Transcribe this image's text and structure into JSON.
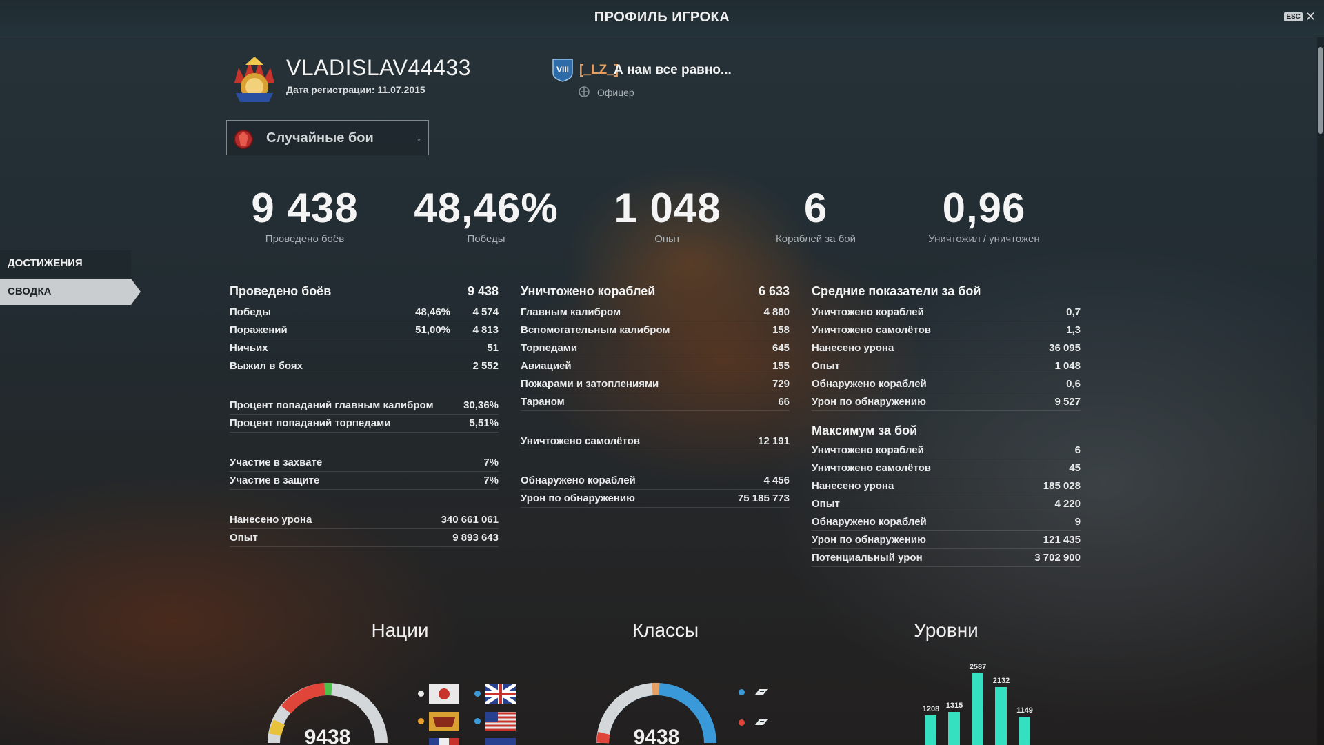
{
  "window": {
    "title": "ПРОФИЛЬ ИГРОКА",
    "esc_label": "ESC"
  },
  "player": {
    "name": "VLADISLAV44433",
    "registration": "Дата регистрации: 11.07.2015",
    "clan_tag": "[_LZ_]",
    "clan_name": "А нам все равно...",
    "clan_tier": "VIII",
    "clan_rank": "Офицер"
  },
  "mode_selector": {
    "selected": "Случайные бои"
  },
  "headline": [
    {
      "value": "9 438",
      "label": "Проведено боёв"
    },
    {
      "value": "48,46%",
      "label": "Победы"
    },
    {
      "value": "1 048",
      "label": "Опыт"
    },
    {
      "value": "6",
      "label": "Кораблей за бой"
    },
    {
      "value": "0,96",
      "label": "Уничтожил / уничтожен"
    }
  ],
  "nav": {
    "achievements": "ДОСТИЖЕНИЯ",
    "summary": "СВОДКА"
  },
  "battles": {
    "header": "Проведено боёв",
    "total": "9 438",
    "rows": [
      {
        "label": "Победы",
        "pct": "48,46%",
        "value": "4 574"
      },
      {
        "label": "Поражений",
        "pct": "51,00%",
        "value": "4 813"
      },
      {
        "label": "Ничьих",
        "pct": "",
        "value": "51"
      },
      {
        "label": "Выжил в боях",
        "pct": "",
        "value": "2 552"
      }
    ],
    "accuracy": [
      {
        "label": "Процент попаданий главным калибром",
        "value": "30,36%"
      },
      {
        "label": "Процент попаданий торпедами",
        "value": "5,51%"
      }
    ],
    "base": [
      {
        "label": "Участие в захвате",
        "value": "7%"
      },
      {
        "label": "Участие в защите",
        "value": "7%"
      }
    ],
    "totals": [
      {
        "label": "Нанесено урона",
        "value": "340 661 061"
      },
      {
        "label": "Опыт",
        "value": "9 893 643"
      }
    ]
  },
  "destroyed": {
    "header": "Уничтожено кораблей",
    "total": "6 633",
    "rows": [
      {
        "label": "Главным калибром",
        "value": "4 880"
      },
      {
        "label": "Вспомогательным калибром",
        "value": "158"
      },
      {
        "label": "Торпедами",
        "value": "645"
      },
      {
        "label": "Авиацией",
        "value": "155"
      },
      {
        "label": "Пожарами и затоплениями",
        "value": "729"
      },
      {
        "label": "Тараном",
        "value": "66"
      }
    ],
    "planes": {
      "label": "Уничтожено самолётов",
      "value": "12 191"
    },
    "spotting": [
      {
        "label": "Обнаружено кораблей",
        "value": "4 456"
      },
      {
        "label": "Урон по обнаружению",
        "value": "75 185 773"
      }
    ]
  },
  "averages": {
    "header": "Средние показатели за бой",
    "rows": [
      {
        "label": "Уничтожено кораблей",
        "value": "0,7"
      },
      {
        "label": "Уничтожено самолётов",
        "value": "1,3"
      },
      {
        "label": "Нанесено урона",
        "value": "36 095"
      },
      {
        "label": "Опыт",
        "value": "1 048"
      },
      {
        "label": "Обнаружено кораблей",
        "value": "0,6"
      },
      {
        "label": "Урон по обнаружению",
        "value": "9 527"
      }
    ]
  },
  "maximums": {
    "header": "Максимум за бой",
    "rows": [
      {
        "label": "Уничтожено кораблей",
        "value": "6"
      },
      {
        "label": "Уничтожено самолётов",
        "value": "45"
      },
      {
        "label": "Нанесено урона",
        "value": "185 028"
      },
      {
        "label": "Опыт",
        "value": "4 220"
      },
      {
        "label": "Обнаружено кораблей",
        "value": "9"
      },
      {
        "label": "Урон по обнаружению",
        "value": "121 435"
      },
      {
        "label": "Потенциальный урон",
        "value": "3 702 900"
      }
    ]
  },
  "charts": {
    "nations": {
      "title": "Нации",
      "total": "9438"
    },
    "classes": {
      "title": "Классы",
      "total": "9438"
    },
    "tiers": {
      "title": "Уровни",
      "bars": [
        {
          "label": "1208",
          "value": 1208
        },
        {
          "label": "1315",
          "value": 1315
        },
        {
          "label": "2587",
          "value": 2587
        },
        {
          "label": "2132",
          "value": 2132
        },
        {
          "label": "1149",
          "value": 1149
        }
      ]
    }
  },
  "colors": {
    "accent": "#35e0c0",
    "clan_tag": "#e8a062",
    "blue": "#3a9ad9",
    "red": "#e0453a",
    "orange": "#e8a062",
    "green": "#4cc24a"
  }
}
